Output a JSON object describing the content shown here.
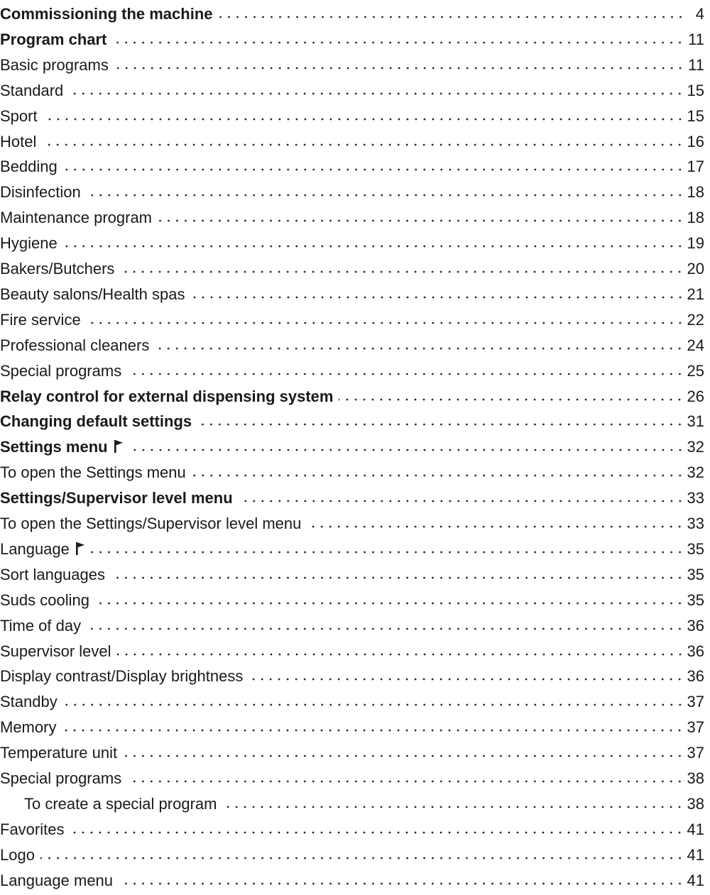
{
  "toc": [
    {
      "title": "Commissioning the machine",
      "page": "4",
      "bold": true
    },
    {
      "title": "Program chart",
      "page": "11",
      "bold": true
    },
    {
      "title": "Basic programs",
      "page": "11"
    },
    {
      "title": "Standard",
      "page": "15"
    },
    {
      "title": "Sport",
      "page": "15"
    },
    {
      "title": "Hotel",
      "page": "16"
    },
    {
      "title": "Bedding",
      "page": "17"
    },
    {
      "title": "Disinfection",
      "page": "18"
    },
    {
      "title": "Maintenance program",
      "page": "18"
    },
    {
      "title": "Hygiene",
      "page": "19"
    },
    {
      "title": "Bakers/Butchers",
      "page": "20"
    },
    {
      "title": "Beauty salons/Health spas",
      "page": "21"
    },
    {
      "title": "Fire service",
      "page": "22"
    },
    {
      "title": "Professional cleaners",
      "page": "24"
    },
    {
      "title": "Special programs",
      "page": "25"
    },
    {
      "title": "Relay control for external dispensing system",
      "page": "26",
      "bold": true
    },
    {
      "title": "Changing default settings",
      "page": "31",
      "bold": true
    },
    {
      "title": "Settings menu",
      "page": "32",
      "bold": true,
      "icon": "flag-icon"
    },
    {
      "title": "To open the Settings menu",
      "page": "32"
    },
    {
      "title": "Settings/Supervisor level menu",
      "page": "33",
      "bold": true
    },
    {
      "title": "To open the Settings/Supervisor level menu",
      "page": "33"
    },
    {
      "title": "Language",
      "page": "35",
      "icon": "flag-icon"
    },
    {
      "title": "Sort languages",
      "page": "35"
    },
    {
      "title": "Suds cooling",
      "page": "35"
    },
    {
      "title": "Time of day",
      "page": "36"
    },
    {
      "title": "Supervisor level",
      "page": "36"
    },
    {
      "title": "Display contrast/Display brightness",
      "page": "36"
    },
    {
      "title": "Standby",
      "page": "37"
    },
    {
      "title": "Memory",
      "page": "37"
    },
    {
      "title": "Temperature unit",
      "page": "37"
    },
    {
      "title": "Special programs",
      "page": "38"
    },
    {
      "title": "To create a special program",
      "page": "38",
      "indent": true
    },
    {
      "title": "Favorites",
      "page": "41"
    },
    {
      "title": "Logo",
      "page": "41"
    },
    {
      "title": "Language menu",
      "page": "41"
    }
  ]
}
